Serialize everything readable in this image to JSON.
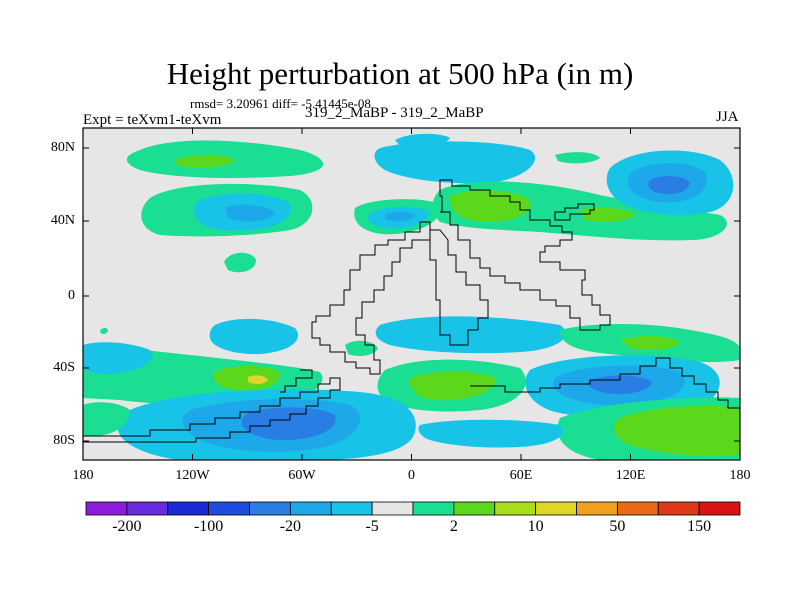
{
  "title": "Height perturbation at 500 hPa (in m)",
  "stats": "rmsd= 3.20961 diff= -5.41445e-08",
  "expt_label": "Expt = teXvm1-teXvm",
  "case_label": "319_2_MaBP - 319_2_MaBP",
  "season": "JJA",
  "map": {
    "x_ticks": [
      "180",
      "120W",
      "60W",
      "0",
      "60E",
      "120E",
      "180"
    ],
    "y_ticks": [
      "80N",
      "40N",
      "0",
      "40S",
      "80S"
    ]
  },
  "colorbar": {
    "colors": [
      "#8c1ddc",
      "#6a2ae0",
      "#1a2ad6",
      "#1f4be0",
      "#2a7ee3",
      "#1da8ea",
      "#18c3e8",
      "#e6e6e6",
      "#1ade92",
      "#5cd81c",
      "#a8de1a",
      "#e0d62a",
      "#f0a01c",
      "#ea6a14",
      "#e0381a",
      "#d81414"
    ],
    "labels": [
      "-200",
      "-100",
      "-20",
      "-5",
      "2",
      "10",
      "50",
      "150"
    ]
  },
  "colors": {
    "background": "#e6e6e6",
    "light_blue": "#18c3e8",
    "mid_blue": "#1da8ea",
    "blue": "#2a7ee3",
    "green": "#1ade92",
    "lime": "#5cd81c",
    "yellow": "#e0d62a"
  }
}
